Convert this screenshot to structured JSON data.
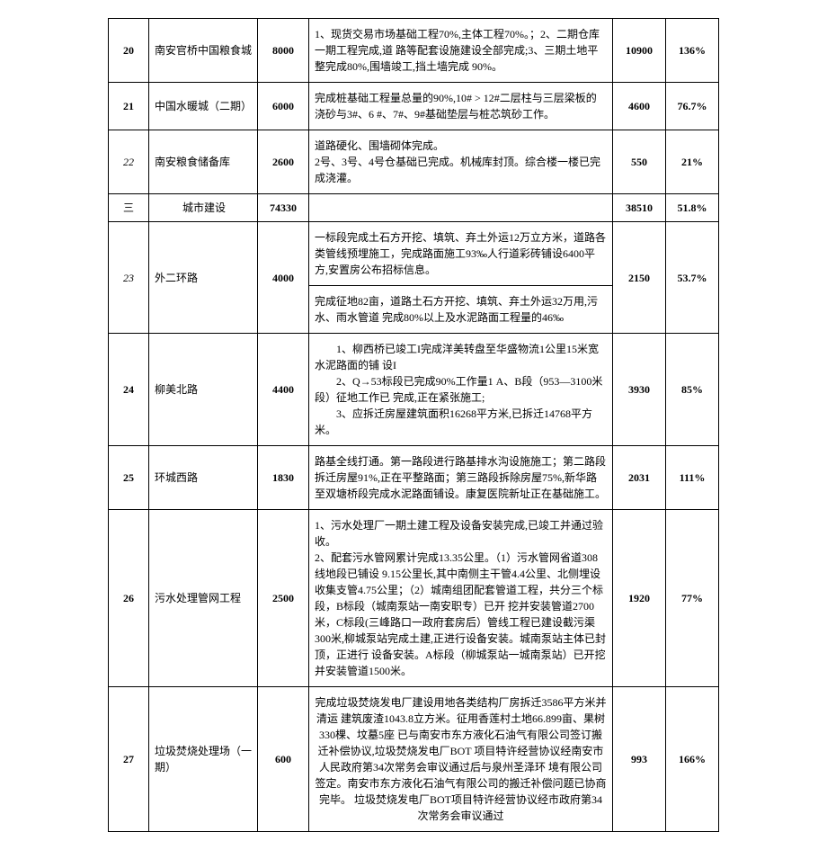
{
  "rows": [
    {
      "idx": "20",
      "idx_bold": true,
      "name": "南安官桥中国粮食城",
      "num1": "8000",
      "desc": "1、现货交易市场基础工程70%,主体工程70%。；2、二期仓库一期工程完成,道 路等配套设施建设全部完成;3、三期土地平整完成80%,围墙竣工,挡土墙完成 90%。",
      "num2": "10900",
      "pct": "136%"
    },
    {
      "idx": "21",
      "idx_bold": true,
      "name": "中国水暖城（二期）",
      "num1": "6000",
      "desc": "完成桩基础工程量总量的90%,10# > 12#二层柱与三层梁板的浇砂与3#、6 #、7#、9#基础垫层与桩芯筑砂工作。",
      "num2": "4600",
      "pct": "76.7%"
    },
    {
      "idx": "22",
      "idx_italic": true,
      "name": "南安粮食储备库",
      "num1": "2600",
      "desc": "道路硬化、围墙砌体完成。\n2号、3号、4号仓基础已完成。机械库封顶。综合楼一楼已完成浇灌。",
      "num2": "550",
      "pct": "21%"
    },
    {
      "idx": "三",
      "name": "城市建设",
      "name_center": true,
      "num1": "74330",
      "desc": "",
      "num2": "38510",
      "pct": "51.8%"
    },
    {
      "idx": "23",
      "idx_italic": true,
      "name": "外二环路",
      "num1": "4000",
      "split": true,
      "desc1": "一标段完成土石方开挖、填筑、弃土外运12万立方米，道路各类管线预埋施工，完成路面施工93‰人行道彩砖铺设6400平方,安置房公布招标信息。",
      "desc2": "完成征地82亩，道路土石方开挖、填筑、弃土外运32万用,污水、雨水管道 完成80%以上及水泥路面工程量的46‰",
      "num2": "2150",
      "pct": "53.7%"
    },
    {
      "idx": "24",
      "idx_bold": true,
      "name": "柳美北路",
      "num1": "4400",
      "desc": "　　1、柳西桥已竣工I完成洋美转盘至华盛物流1公里15米宽水泥路面的铺 设I\n　　2、Q→53标段已完成90%工作量1 A、B段（953—3100米段）征地工作已 完成,正在紧张施工;\n　　3、应拆迁房屋建筑面积16268平方米,已拆迁14768平方米。",
      "num2": "3930",
      "pct": "85%"
    },
    {
      "idx": "25",
      "idx_bold": true,
      "name": "环城西路",
      "num1": "1830",
      "desc": "路基全线打通。第一路段进行路基排水沟设施施工；第二路段拆迁房屋91%,正在平整路面；第三路段拆除房屋75%,新华路至双塘桥段完成水泥路面铺设。康复医院新址正在基础施工。",
      "num2": "2031",
      "pct": "111%"
    },
    {
      "idx": "26",
      "idx_bold": true,
      "name": "污水处理管网工程",
      "num1": "2500",
      "desc": "1、污水处理厂一期土建工程及设备安装完成,已竣工并通过验收。\n2、配套污水管网累计完成13.35公里。（1）污水管网省道308线地段已铺设 9.15公里长,其中南侧主干管4.4公里、北侧埋设收集支管4.75公里；（2）城南组团配套管道工程，共分三个标段，B标段（城南泵站一南安职专）已开 挖并安装管道2700米，C标段(三峰路口一政府套房后）管线工程已建设截污渠 300米,柳城泵站完成土建,正进行设备安装。城南泵站主体已封顶，正进行 设备安装。A标段（柳城泵站一城南泵站）已开挖并安装管道1500米。",
      "num2": "1920",
      "pct": "77%"
    },
    {
      "idx": "27",
      "idx_bold": true,
      "name": "垃圾焚烧处理场（一期）",
      "num1": "600",
      "desc_center": true,
      "desc": "完成垃圾焚烧发电厂建设用地各类结构厂房拆迁3586平方米并清运 建筑废渣1043.8立方米。征用香莲村土地66.899亩、果树330棵、坟墓5座 已与南安市东方液化石油气有限公司签订搬迁补偿协议,垃圾焚烧发电厂BOT 项目特许经营协议经南安市人民政府第34次常务会审议通过后与泉州圣泽环 境有限公司签定。南安市东方液化石油气有限公司的搬迁补偿问题已协商完毕。 垃圾焚烧发电厂BOT项目特许经营协议经市政府第34次常务会审议通过",
      "num2": "993",
      "pct": "166%"
    }
  ]
}
